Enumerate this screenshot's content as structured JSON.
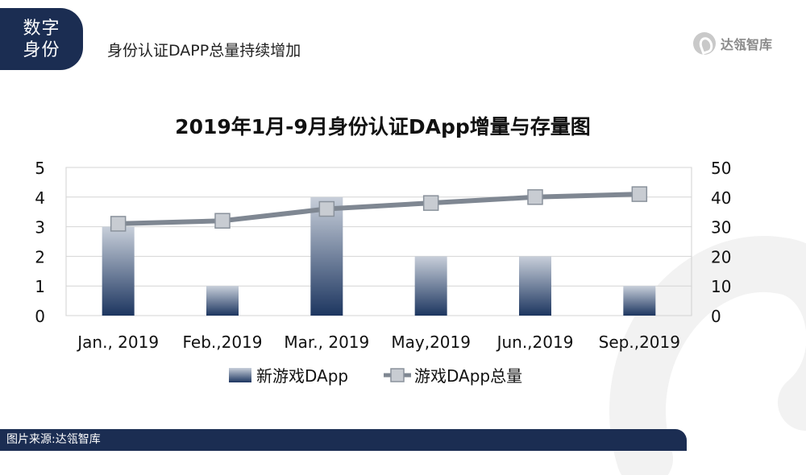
{
  "header": {
    "section_tag": "数字身份",
    "page_heading": "身份认证DAPP总量持续增加",
    "logo_text": "达瓴智库"
  },
  "footer": {
    "source": "图片来源:达瓴智库"
  },
  "colors": {
    "navy": "#1b2d52",
    "bar_top": "#c5ccd8",
    "bar_bottom": "#1d3660",
    "line": "#7f8792",
    "marker": "#c8ccd2"
  },
  "chart_data": {
    "type": "bar",
    "title": "2019年1月-9月身份认证DApp增量与存量图",
    "categories": [
      "Jan., 2019",
      "Feb.,2019",
      "Mar., 2019",
      "May,2019",
      "Jun.,2019",
      "Sep.,2019"
    ],
    "series": [
      {
        "name": "新游戏DApp",
        "type": "bar",
        "axis": "left",
        "values": [
          3,
          1,
          4,
          2,
          2,
          1
        ]
      },
      {
        "name": "游戏DApp总量",
        "type": "line",
        "axis": "right",
        "values": [
          31,
          32,
          36,
          38,
          40,
          41
        ]
      }
    ],
    "y_left": {
      "min": 0,
      "max": 5,
      "ticks": [
        "0",
        "1",
        "2",
        "3",
        "4",
        "5"
      ]
    },
    "y_right": {
      "min": 0,
      "max": 50,
      "ticks": [
        "0",
        "10",
        "20",
        "30",
        "40",
        "50"
      ]
    },
    "grid": true,
    "legend_position": "bottom"
  }
}
